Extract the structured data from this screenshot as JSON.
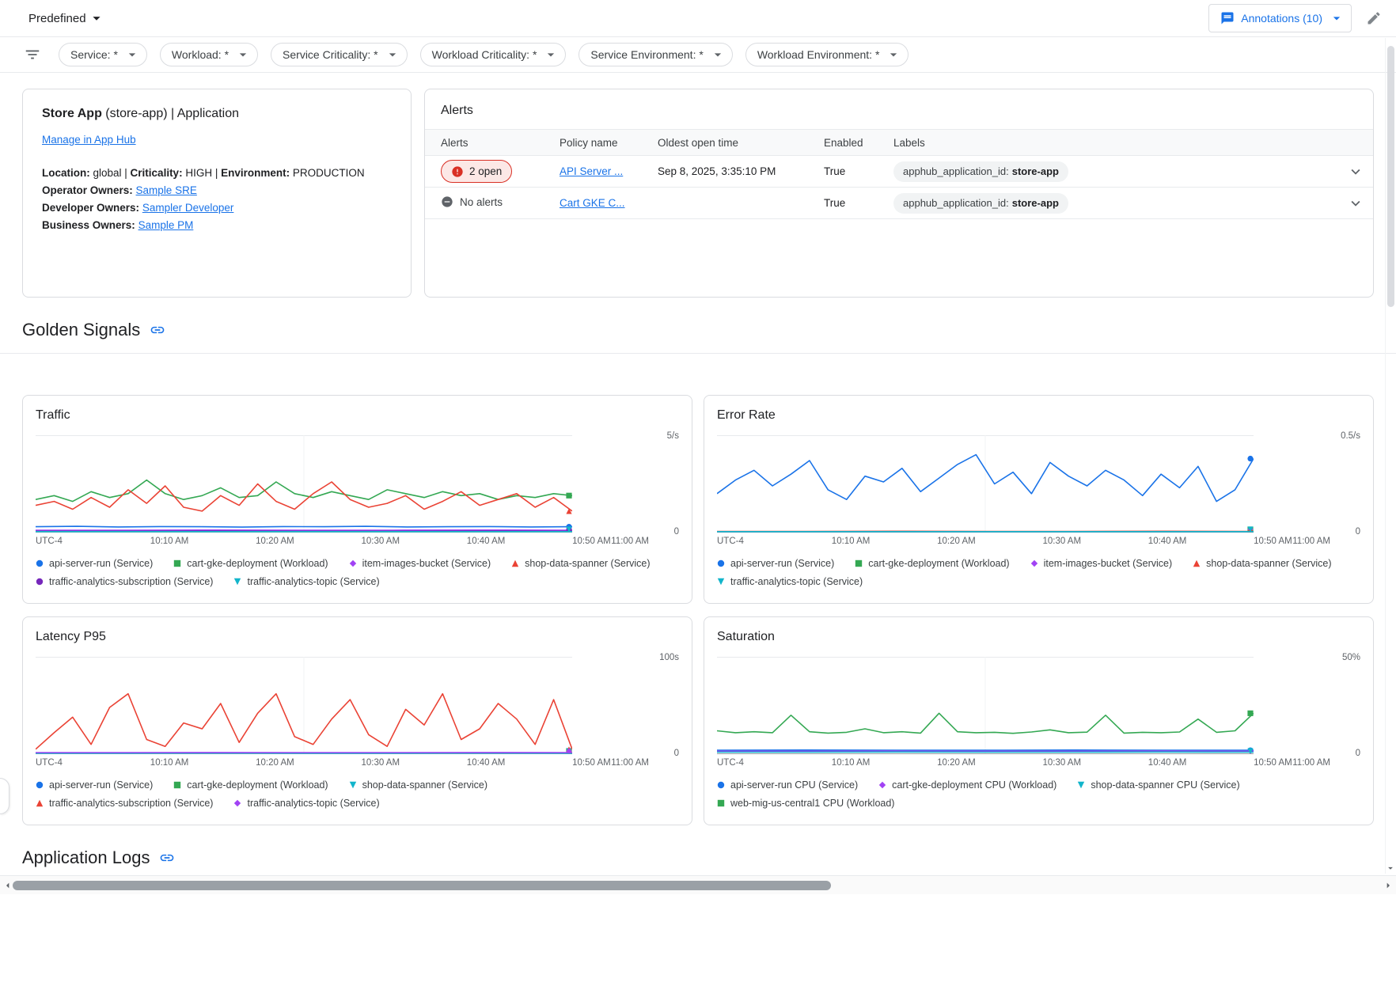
{
  "header": {
    "view_selector_label": "Predefined",
    "annotations_button": "Annotations (10)"
  },
  "filter_bar": {
    "chips": [
      "Service: *",
      "Workload: *",
      "Service Criticality: *",
      "Workload Criticality: *",
      "Service Environment: *",
      "Workload Environment: *"
    ]
  },
  "app_card": {
    "title_app": "Store App",
    "title_suffix": " (store-app) | Application",
    "manage_link": "Manage in App Hub",
    "meta_separator": " | ",
    "meta": [
      {
        "label": "Location:",
        "value": "global"
      },
      {
        "label": "Criticality:",
        "value": "HIGH"
      },
      {
        "label": "Environment:",
        "value": "PRODUCTION"
      }
    ],
    "owners": [
      {
        "label": "Operator Owners:",
        "link": "Sample SRE"
      },
      {
        "label": "Developer Owners:",
        "link": "Sampler Developer"
      },
      {
        "label": "Business Owners:",
        "link": "Sample PM"
      }
    ]
  },
  "alerts": {
    "title": "Alerts",
    "columns": [
      "Alerts",
      "Policy name",
      "Oldest open time",
      "Enabled",
      "Labels"
    ],
    "rows": [
      {
        "status_label": "2 open",
        "status_type": "open",
        "policy_name": "API Server ...",
        "oldest_open_time": "Sep 8, 2025, 3:35:10 PM",
        "enabled": "True",
        "label_key": "apphub_application_id:",
        "label_value": "store-app"
      },
      {
        "status_label": "No alerts",
        "status_type": "none",
        "policy_name": "Cart GKE C...",
        "oldest_open_time": "",
        "enabled": "True",
        "label_key": "apphub_application_id:",
        "label_value": "store-app"
      }
    ]
  },
  "sections": {
    "golden_signals": "Golden Signals",
    "application_logs": "Application Logs"
  },
  "colors": {
    "accent_blue": "#1a73e8",
    "alert_red": "#d93025",
    "pill_gray": "#f1f3f4"
  },
  "chart_data": [
    {
      "title": "Traffic",
      "type": "line",
      "ymax": 5,
      "ylim": [
        0,
        5
      ],
      "ymax_label": "5/s",
      "ymin_label": "0",
      "x_ticks": [
        "UTC-4",
        "10:10 AM",
        "10:20 AM",
        "10:30 AM",
        "10:40 AM",
        "10:50 AM",
        "11:00 AM"
      ],
      "series": [
        {
          "name": "api-server-run (Service)",
          "color": "#1a73e8",
          "marker": "circle",
          "values": [
            0.3,
            0.32,
            0.29,
            0.31,
            0.3,
            0.28,
            0.31,
            0.3,
            0.32,
            0.29,
            0.3,
            0.31,
            0.29,
            0.3
          ]
        },
        {
          "name": "cart-gke-deployment (Workload)",
          "color": "#34a853",
          "marker": "square",
          "values": [
            1.7,
            1.9,
            1.6,
            2.1,
            1.8,
            2.0,
            2.7,
            2.0,
            1.7,
            1.9,
            2.3,
            1.8,
            1.9,
            2.6,
            2.0,
            1.8,
            2.1,
            1.9,
            1.7,
            2.2,
            2.0,
            1.8,
            2.1,
            1.9,
            2.0,
            1.7,
            1.9,
            1.8,
            2.0,
            1.9
          ]
        },
        {
          "name": "item-images-bucket (Service)",
          "color": "#a142f4",
          "marker": "diamond",
          "values": [
            0.12,
            0.12,
            0.13,
            0.12,
            0.12,
            0.13,
            0.12
          ]
        },
        {
          "name": "shop-data-spanner (Service)",
          "color": "#ea4335",
          "marker": "triangle-up",
          "values": [
            1.4,
            1.6,
            1.2,
            1.8,
            1.3,
            2.2,
            1.5,
            2.4,
            1.3,
            1.1,
            1.9,
            1.4,
            2.5,
            1.6,
            1.2,
            2.0,
            2.6,
            1.7,
            1.3,
            1.5,
            1.9,
            1.2,
            1.6,
            2.1,
            1.4,
            1.7,
            2.0,
            1.3,
            1.8,
            1.1
          ]
        },
        {
          "name": "traffic-analytics-subscription (Service)",
          "color": "#7627bb",
          "marker": "circle",
          "values": [
            0.07,
            0.07,
            0.08,
            0.07,
            0.07,
            0.08,
            0.07
          ]
        },
        {
          "name": "traffic-analytics-topic (Service)",
          "color": "#12b5cb",
          "marker": "triangle-down",
          "values": [
            0.04,
            0.04,
            0.05,
            0.04,
            0.04,
            0.05,
            0.04
          ]
        }
      ]
    },
    {
      "title": "Error Rate",
      "type": "line",
      "ymax": 0.5,
      "ylim": [
        0,
        0.5
      ],
      "ymax_label": "0.5/s",
      "ymin_label": "0",
      "x_ticks": [
        "UTC-4",
        "10:10 AM",
        "10:20 AM",
        "10:30 AM",
        "10:40 AM",
        "10:50 AM",
        "11:00 AM"
      ],
      "series": [
        {
          "name": "api-server-run (Service)",
          "color": "#1a73e8",
          "marker": "circle",
          "values": [
            0.2,
            0.27,
            0.32,
            0.24,
            0.3,
            0.37,
            0.22,
            0.17,
            0.29,
            0.26,
            0.33,
            0.21,
            0.28,
            0.35,
            0.4,
            0.25,
            0.31,
            0.2,
            0.36,
            0.29,
            0.24,
            0.32,
            0.27,
            0.19,
            0.3,
            0.23,
            0.34,
            0.16,
            0.22,
            0.38
          ]
        },
        {
          "name": "cart-gke-deployment (Workload)",
          "color": "#34a853",
          "marker": "square",
          "values": [
            0.004,
            0.004,
            0.005,
            0.004,
            0.004,
            0.005,
            0.004
          ]
        },
        {
          "name": "item-images-bucket (Service)",
          "color": "#a142f4",
          "marker": "diamond",
          "values": [
            0.004,
            0.004,
            0.004,
            0.004,
            0.004,
            0.004,
            0.004
          ]
        },
        {
          "name": "shop-data-spanner (Service)",
          "color": "#ea4335",
          "marker": "triangle-up",
          "values": [
            0.006,
            0.006,
            0.007,
            0.006,
            0.006,
            0.007,
            0.006
          ]
        },
        {
          "name": "traffic-analytics-topic (Service)",
          "color": "#12b5cb",
          "marker": "triangle-down",
          "values": [
            0.003,
            0.003,
            0.003,
            0.003,
            0.003,
            0.003,
            0.003
          ]
        }
      ]
    },
    {
      "title": "Latency P95",
      "type": "line",
      "ymax": 100,
      "ylim": [
        0,
        100
      ],
      "ymax_label": "100s",
      "ymin_label": "0",
      "x_ticks": [
        "UTC-4",
        "10:10 AM",
        "10:20 AM",
        "10:30 AM",
        "10:40 AM",
        "10:50 AM",
        "11:00 AM"
      ],
      "series": [
        {
          "name": "api-server-run (Service)",
          "color": "#1a73e8",
          "marker": "circle",
          "values": [
            1,
            1,
            1.1,
            1,
            1,
            1.1,
            1
          ]
        },
        {
          "name": "cart-gke-deployment (Workload)",
          "color": "#34a853",
          "marker": "square",
          "values": [
            1.3,
            1.3,
            1.4,
            1.3,
            1.3,
            1.4,
            1.3
          ]
        },
        {
          "name": "shop-data-spanner (Service)",
          "color": "#12b5cb",
          "marker": "triangle-down",
          "values": [
            0.8,
            0.8,
            0.9,
            0.8,
            0.8,
            0.9,
            0.8
          ]
        },
        {
          "name": "traffic-analytics-subscription (Service)",
          "color": "#ea4335",
          "marker": "triangle-up",
          "values": [
            5,
            22,
            38,
            10,
            48,
            62,
            15,
            8,
            32,
            26,
            52,
            12,
            42,
            62,
            18,
            10,
            36,
            56,
            20,
            8,
            46,
            30,
            62,
            15,
            26,
            52,
            36,
            10,
            56,
            5
          ]
        },
        {
          "name": "traffic-analytics-topic (Service)",
          "color": "#a142f4",
          "marker": "diamond",
          "values": [
            1.6,
            1.6,
            1.7,
            1.6,
            1.6,
            1.7,
            1.6
          ]
        }
      ]
    },
    {
      "title": "Saturation",
      "type": "line",
      "ymax": 50,
      "ylim": [
        0,
        50
      ],
      "ymax_label": "50%",
      "ymin_label": "0",
      "x_ticks": [
        "UTC-4",
        "10:10 AM",
        "10:20 AM",
        "10:30 AM",
        "10:40 AM",
        "10:50 AM",
        "11:00 AM"
      ],
      "series": [
        {
          "name": "api-server-run CPU (Service)",
          "color": "#1a73e8",
          "marker": "circle",
          "values": [
            2,
            2.1,
            2,
            2,
            2.1,
            2,
            2
          ]
        },
        {
          "name": "cart-gke-deployment CPU (Workload)",
          "color": "#a142f4",
          "marker": "diamond",
          "values": [
            1.5,
            1.5,
            1.6,
            1.5,
            1.5,
            1.6,
            1.5
          ]
        },
        {
          "name": "shop-data-spanner CPU (Service)",
          "color": "#12b5cb",
          "marker": "triangle-down",
          "values": [
            1,
            1,
            1.1,
            1,
            1,
            1.1,
            1
          ]
        },
        {
          "name": "web-mig-us-central1 CPU (Workload)",
          "color": "#34a853",
          "marker": "square",
          "values": [
            12,
            11,
            11.5,
            11,
            20,
            11.5,
            10.8,
            11.2,
            13,
            11,
            11.5,
            10.8,
            21,
            11.5,
            11,
            11.2,
            10.7,
            11.4,
            12.5,
            11,
            11.3,
            20,
            10.8,
            11.2,
            11,
            11.4,
            18,
            11.2,
            12,
            21
          ]
        }
      ]
    }
  ]
}
